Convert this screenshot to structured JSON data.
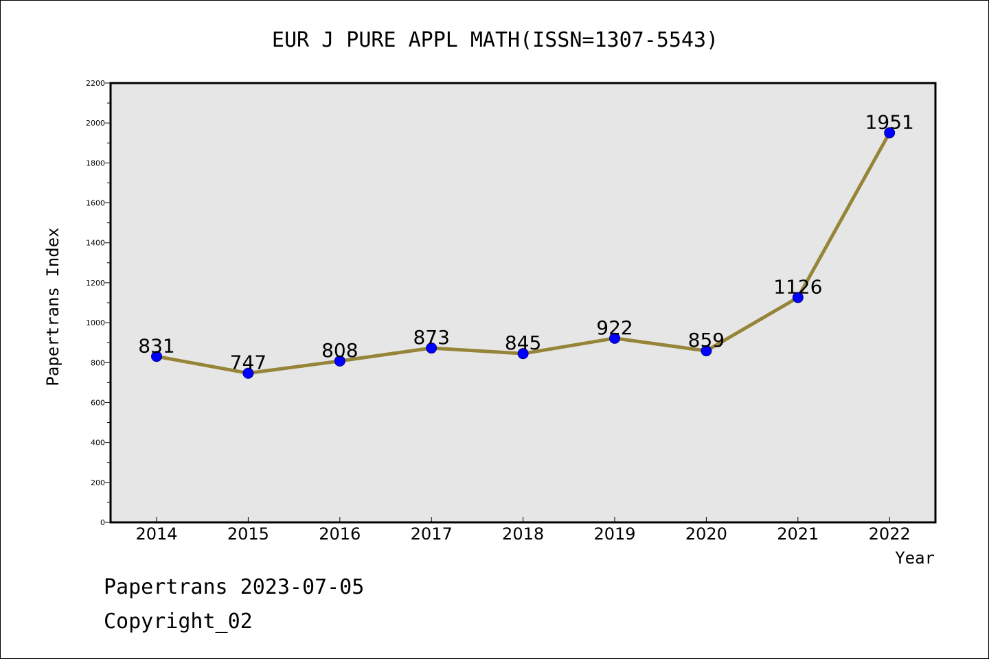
{
  "chart_data": {
    "type": "line",
    "title": "EUR J PURE APPL MATH(ISSN=1307-5543)",
    "xlabel": "Year",
    "ylabel": "Papertrans Index",
    "categories": [
      "2014",
      "2015",
      "2016",
      "2017",
      "2018",
      "2019",
      "2020",
      "2021",
      "2022"
    ],
    "values": [
      831,
      747,
      808,
      873,
      845,
      922,
      859,
      1126,
      1951
    ],
    "data_labels": [
      "831",
      "747",
      "808",
      "873",
      "845",
      "922",
      "859",
      "1126",
      "1951"
    ],
    "ylim": [
      0,
      2200
    ],
    "yticks": [
      "0",
      "200",
      "400",
      "600",
      "800",
      "1000",
      "1200",
      "1400",
      "1600",
      "1800",
      "2000",
      "2200"
    ],
    "grid": false,
    "line_color": "#968539",
    "marker_color": "#0000ff",
    "plot_background": "#e6e6e6"
  },
  "footer": {
    "source": "Papertrans 2023-07-05",
    "copyright": "Copyright_02"
  }
}
